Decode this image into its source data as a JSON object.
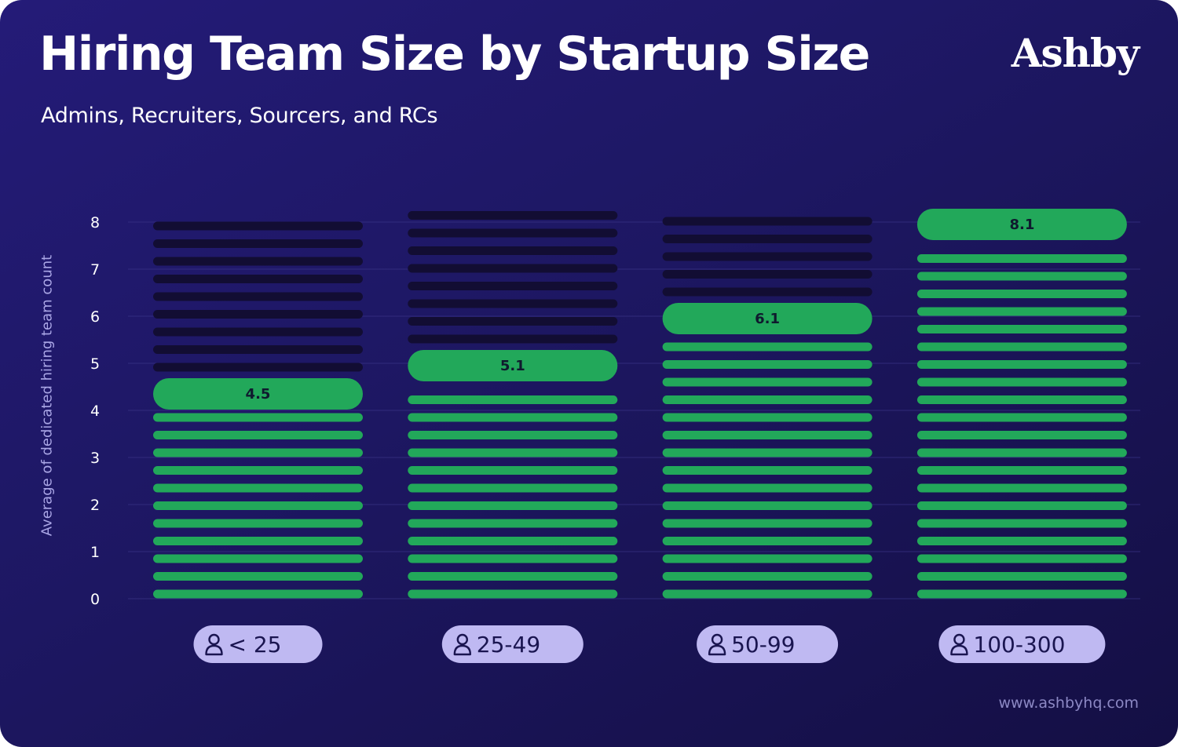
{
  "title": "Hiring Team Size by Startup Size",
  "subtitle": "Admins, Recruiters, Sourcers, and RCs",
  "brand": "Ashby",
  "footer": "www.ashbyhq.com",
  "colors": {
    "background": "#1d1762",
    "bar_filled": "#22a85a",
    "bar_empty": "#120d33",
    "pill_background": "#bfb9f2",
    "pill_text": "#1a1550",
    "axis_label": "#aaa6e6"
  },
  "chart_data": {
    "type": "bar",
    "ylabel": "Average of dedicated hiring team count",
    "xlabel": "",
    "ylim": [
      0,
      8
    ],
    "yticks": [
      0,
      1,
      2,
      3,
      4,
      5,
      6,
      7,
      8
    ],
    "grid": true,
    "categories": [
      "< 25",
      "25-49",
      "50-99",
      "100-300"
    ],
    "category_icon": "person-icon",
    "values": [
      4.5,
      5.1,
      6.1,
      8.1
    ]
  }
}
